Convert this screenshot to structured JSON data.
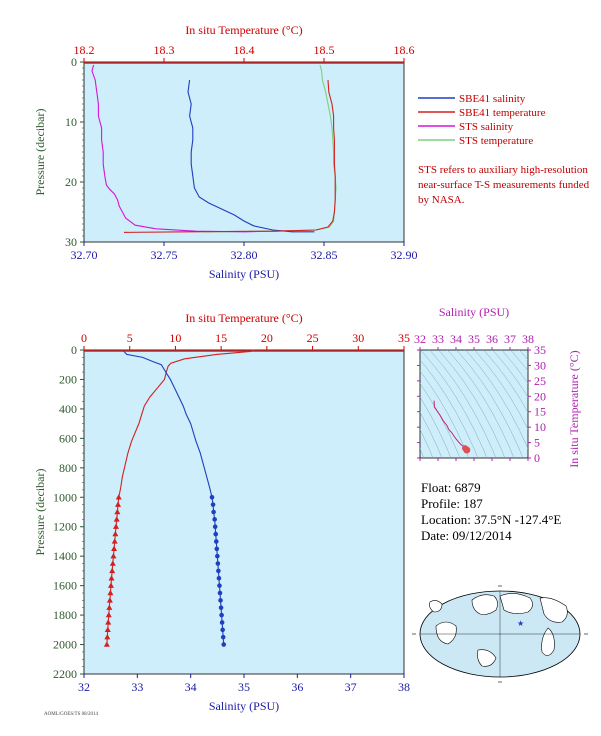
{
  "chart_data": [
    {
      "id": "top",
      "type": "line",
      "title_top_axis": "In situ Temperature (°C)",
      "xlabel": "Salinity (PSU)",
      "ylabel": "Pressure (decibar)",
      "x_bottom": {
        "label": "Salinity (PSU)",
        "range": [
          32.7,
          32.9
        ],
        "ticks": [
          "32.70",
          "32.75",
          "32.80",
          "32.85",
          "32.90"
        ],
        "tick_values": [
          32.7,
          32.75,
          32.8,
          32.85,
          32.9
        ]
      },
      "x_top": {
        "label": "In situ Temperature (°C)",
        "range": [
          18.2,
          18.6
        ],
        "ticks": [
          "18.2",
          "18.3",
          "18.4",
          "18.5",
          "18.6"
        ],
        "tick_values": [
          18.2,
          18.3,
          18.4,
          18.5,
          18.6
        ]
      },
      "y": {
        "range": [
          0,
          30
        ],
        "ticks": [
          "0",
          "10",
          "20",
          "30"
        ],
        "tick_values": [
          0,
          10,
          20,
          30
        ],
        "inverted": true
      },
      "series": [
        {
          "name": "SBE41 salinity",
          "color": "#1f3fbf",
          "axis": "bottom",
          "points": [
            [
              32.766,
              3
            ],
            [
              32.765,
              5
            ],
            [
              32.767,
              7
            ],
            [
              32.766,
              9
            ],
            [
              32.768,
              11
            ],
            [
              32.768,
              13
            ],
            [
              32.767,
              15
            ],
            [
              32.767,
              17
            ],
            [
              32.768,
              19
            ],
            [
              32.769,
              21
            ],
            [
              32.772,
              22.5
            ],
            [
              32.778,
              23.5
            ],
            [
              32.786,
              24.5
            ],
            [
              32.794,
              25.5
            ],
            [
              32.8,
              26.5
            ],
            [
              32.806,
              27.3
            ],
            [
              32.818,
              28.0
            ],
            [
              32.83,
              28.3
            ],
            [
              32.844,
              28.3
            ]
          ]
        },
        {
          "name": "SBE41 temperature",
          "color": "#d42020",
          "axis": "top",
          "points": [
            [
              18.505,
              3
            ],
            [
              18.506,
              5
            ],
            [
              18.51,
              7
            ],
            [
              18.512,
              9
            ],
            [
              18.512,
              11
            ],
            [
              18.513,
              13
            ],
            [
              18.513,
              15
            ],
            [
              18.513,
              17
            ],
            [
              18.514,
              19
            ],
            [
              18.514,
              21
            ],
            [
              18.514,
              23
            ],
            [
              18.513,
              25
            ],
            [
              18.511,
              26.5
            ],
            [
              18.505,
              27.5
            ],
            [
              18.49,
              28.0
            ],
            [
              18.44,
              28.2
            ],
            [
              18.33,
              28.3
            ],
            [
              18.25,
              28.4
            ]
          ]
        },
        {
          "name": "STS salinity",
          "color": "#d417d4",
          "axis": "bottom",
          "points": [
            [
              32.706,
              0.5
            ],
            [
              32.705,
              1.5
            ],
            [
              32.707,
              3
            ],
            [
              32.708,
              5
            ],
            [
              32.709,
              7
            ],
            [
              32.709,
              9
            ],
            [
              32.711,
              11
            ],
            [
              32.711,
              13
            ],
            [
              32.712,
              15
            ],
            [
              32.712,
              17
            ],
            [
              32.713,
              19
            ],
            [
              32.714,
              20.5
            ],
            [
              32.716,
              21.2
            ],
            [
              32.719,
              22
            ],
            [
              32.721,
              23
            ],
            [
              32.722,
              24
            ],
            [
              32.724,
              25
            ],
            [
              32.726,
              26
            ],
            [
              32.732,
              27.2
            ],
            [
              32.745,
              27.8
            ],
            [
              32.77,
              28.2
            ],
            [
              32.8,
              28.3
            ],
            [
              32.83,
              28.1
            ]
          ]
        },
        {
          "name": "STS temperature",
          "color": "#7fcf7f",
          "axis": "top",
          "points": [
            [
              18.495,
              0.5
            ],
            [
              18.497,
              1.5
            ],
            [
              18.498,
              3
            ],
            [
              18.502,
              5
            ],
            [
              18.505,
              7
            ],
            [
              18.508,
              9
            ],
            [
              18.51,
              11
            ],
            [
              18.511,
              13
            ],
            [
              18.512,
              15
            ],
            [
              18.512,
              17
            ],
            [
              18.514,
              19
            ],
            [
              18.515,
              21
            ],
            [
              18.514,
              23
            ],
            [
              18.513,
              25
            ],
            [
              18.512,
              26.5
            ],
            [
              18.507,
              27.5
            ],
            [
              18.49,
              28.0
            ],
            [
              18.43,
              28.2
            ],
            [
              18.35,
              28.3
            ]
          ]
        }
      ],
      "legend": {
        "placement": "right",
        "entries": [
          "SBE41 salinity",
          "SBE41 temperature",
          "STS salinity",
          "STS temperature"
        ]
      },
      "annotation": "STS refers to auxiliary high-resolution near-surface T-S measurements funded by NASA."
    },
    {
      "id": "bottom",
      "type": "line",
      "title_top_axis": "In situ Temperature (°C)",
      "xlabel": "Salinity (PSU)",
      "ylabel": "Pressure (decibar)",
      "x_bottom": {
        "label": "Salinity (PSU)",
        "range": [
          32,
          38
        ],
        "ticks": [
          "32",
          "33",
          "34",
          "35",
          "36",
          "37",
          "38"
        ],
        "tick_values": [
          32,
          33,
          34,
          35,
          36,
          37,
          38
        ]
      },
      "x_top": {
        "label": "In situ Temperature (°C)",
        "range": [
          0,
          35
        ],
        "ticks": [
          "0",
          "5",
          "10",
          "15",
          "20",
          "25",
          "30",
          "35"
        ],
        "tick_values": [
          0,
          5,
          10,
          15,
          20,
          25,
          30,
          35
        ]
      },
      "y": {
        "range": [
          0,
          2200
        ],
        "ticks": [
          "0",
          "200",
          "400",
          "600",
          "800",
          "1000",
          "1200",
          "1400",
          "1600",
          "1800",
          "2000",
          "2200"
        ],
        "tick_values": [
          0,
          200,
          400,
          600,
          800,
          1000,
          1200,
          1400,
          1600,
          1800,
          2000,
          2200
        ],
        "inverted": true
      },
      "series": [
        {
          "name": "Salinity",
          "color": "#1f3fbf",
          "axis": "bottom",
          "points": [
            [
              32.78,
              0
            ],
            [
              32.75,
              10
            ],
            [
              32.8,
              30
            ],
            [
              33.1,
              50
            ],
            [
              33.3,
              80
            ],
            [
              33.45,
              100
            ],
            [
              33.5,
              130
            ],
            [
              33.55,
              160
            ],
            [
              33.62,
              200
            ],
            [
              33.7,
              260
            ],
            [
              33.78,
              320
            ],
            [
              33.86,
              380
            ],
            [
              33.92,
              440
            ],
            [
              34.0,
              500
            ],
            [
              34.05,
              560
            ],
            [
              34.1,
              620
            ],
            [
              34.18,
              700
            ],
            [
              34.24,
              780
            ],
            [
              34.3,
              860
            ],
            [
              34.36,
              940
            ],
            [
              34.4,
              1000
            ],
            [
              34.42,
              1050
            ],
            [
              34.43,
              1100
            ],
            [
              34.45,
              1150
            ],
            [
              34.46,
              1200
            ],
            [
              34.47,
              1250
            ],
            [
              34.48,
              1300
            ],
            [
              34.49,
              1350
            ],
            [
              34.5,
              1400
            ],
            [
              34.51,
              1450
            ],
            [
              34.52,
              1500
            ],
            [
              34.53,
              1550
            ],
            [
              34.54,
              1600
            ],
            [
              34.55,
              1650
            ],
            [
              34.56,
              1700
            ],
            [
              34.57,
              1750
            ],
            [
              34.58,
              1800
            ],
            [
              34.59,
              1850
            ],
            [
              34.6,
              1900
            ],
            [
              34.61,
              1950
            ],
            [
              34.62,
              2000
            ]
          ]
        },
        {
          "name": "Temperature",
          "color": "#d42020",
          "axis": "top",
          "points": [
            [
              18.6,
              0
            ],
            [
              18.2,
              10
            ],
            [
              14.5,
              30
            ],
            [
              11.0,
              60
            ],
            [
              9.5,
              90
            ],
            [
              9.2,
              110
            ],
            [
              9.0,
              150
            ],
            [
              8.8,
              200
            ],
            [
              8.0,
              260
            ],
            [
              7.2,
              320
            ],
            [
              6.6,
              380
            ],
            [
              6.3,
              440
            ],
            [
              6.0,
              500
            ],
            [
              5.6,
              560
            ],
            [
              5.2,
              620
            ],
            [
              4.8,
              700
            ],
            [
              4.5,
              780
            ],
            [
              4.2,
              860
            ],
            [
              4.0,
              940
            ],
            [
              3.8,
              1000
            ],
            [
              3.72,
              1050
            ],
            [
              3.65,
              1100
            ],
            [
              3.58,
              1150
            ],
            [
              3.5,
              1200
            ],
            [
              3.43,
              1250
            ],
            [
              3.36,
              1300
            ],
            [
              3.29,
              1350
            ],
            [
              3.22,
              1400
            ],
            [
              3.15,
              1450
            ],
            [
              3.08,
              1500
            ],
            [
              3.01,
              1550
            ],
            [
              2.95,
              1600
            ],
            [
              2.89,
              1650
            ],
            [
              2.83,
              1700
            ],
            [
              2.77,
              1750
            ],
            [
              2.71,
              1800
            ],
            [
              2.65,
              1850
            ],
            [
              2.6,
              1900
            ],
            [
              2.55,
              1950
            ],
            [
              2.5,
              2000
            ]
          ]
        }
      ]
    },
    {
      "id": "ts",
      "type": "scatter",
      "x_top": {
        "label": "Salinity (PSU)",
        "range": [
          32,
          38
        ],
        "ticks": [
          "32",
          "33",
          "34",
          "35",
          "36",
          "37",
          "38"
        ],
        "tick_values": [
          32,
          33,
          34,
          35,
          36,
          37,
          38
        ]
      },
      "y_right": {
        "label": "In situ Temperature (°C)",
        "range": [
          0,
          35
        ],
        "ticks": [
          "0",
          "5",
          "10",
          "15",
          "20",
          "25",
          "30",
          "35"
        ],
        "tick_values": [
          0,
          5,
          10,
          15,
          20,
          25,
          30,
          35
        ]
      },
      "points": [
        [
          32.78,
          18.6
        ],
        [
          32.8,
          16.5
        ],
        [
          33.1,
          14.0
        ],
        [
          33.3,
          12.0
        ],
        [
          33.5,
          10.5
        ],
        [
          33.6,
          9.2
        ],
        [
          33.75,
          8.3
        ],
        [
          33.9,
          7.0
        ],
        [
          34.0,
          6.2
        ],
        [
          34.1,
          5.5
        ],
        [
          34.25,
          4.5
        ],
        [
          34.4,
          3.8
        ],
        [
          34.5,
          3.2
        ],
        [
          34.6,
          2.6
        ]
      ]
    }
  ],
  "info": {
    "float": "Float:  6879",
    "profile": "Profile:  187",
    "location": "Location:  37.5°N  -127.4°E",
    "date": "Date:  09/12/2014"
  },
  "footnote": "AOML/GOES/TS 08/2014",
  "colors": {
    "plot_bg": "#cdeefa",
    "axis_top": "#cc0000",
    "axis_bottom": "#1a1aa6",
    "axis_left": "#2f5a2f",
    "ts_axis": "#b020b0"
  }
}
